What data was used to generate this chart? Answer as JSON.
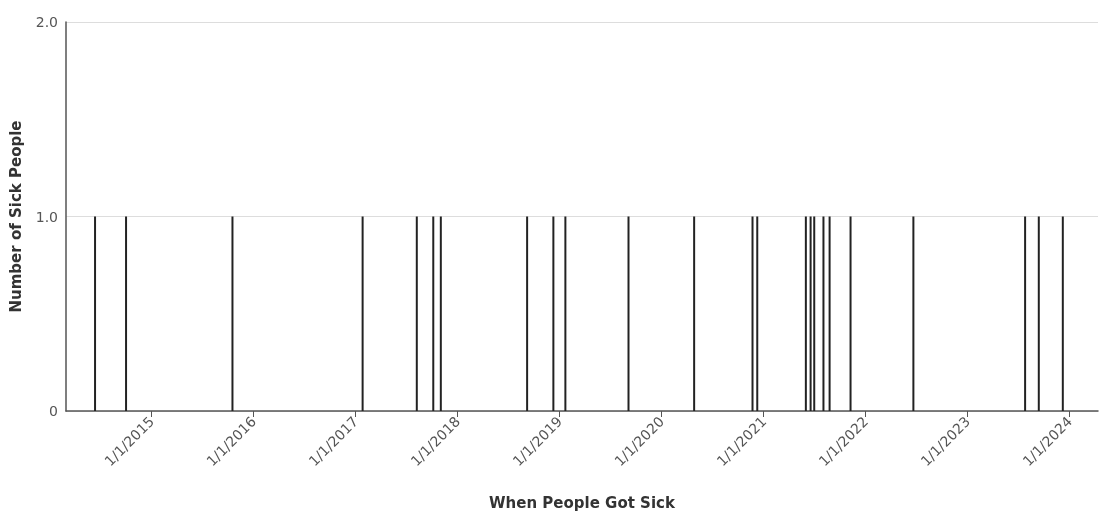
{
  "chart_data": {
    "type": "bar",
    "xlabel": "When People Got Sick",
    "ylabel": "Number of Sick People",
    "x": [
      "2014-06-13",
      "2014-10-02",
      "2015-10-18",
      "2017-01-26",
      "2017-08-08",
      "2017-10-06",
      "2017-11-02",
      "2018-09-07",
      "2018-12-10",
      "2019-01-22",
      "2019-09-05",
      "2020-04-27",
      "2020-11-22",
      "2020-12-09",
      "2021-06-01",
      "2021-06-18",
      "2021-07-01",
      "2021-08-03",
      "2021-08-25",
      "2021-11-08",
      "2022-06-21",
      "2023-07-26",
      "2023-09-13",
      "2023-12-08"
    ],
    "values": [
      1,
      1,
      1,
      1,
      1,
      1,
      1,
      1,
      1,
      1,
      1,
      1,
      1,
      1,
      1,
      1,
      1,
      1,
      1,
      1,
      1,
      1,
      1,
      1
    ],
    "color": "#222222",
    "xlim": [
      "2014-03-01",
      "2024-04-12"
    ],
    "xticks": [
      {
        "value": "2015-01-01",
        "label": "1/1/2015"
      },
      {
        "value": "2016-01-01",
        "label": "1/1/2016"
      },
      {
        "value": "2017-01-01",
        "label": "1/1/2017"
      },
      {
        "value": "2018-01-01",
        "label": "1/1/2018"
      },
      {
        "value": "2019-01-01",
        "label": "1/1/2019"
      },
      {
        "value": "2020-01-01",
        "label": "1/1/2020"
      },
      {
        "value": "2021-01-01",
        "label": "1/1/2021"
      },
      {
        "value": "2022-01-01",
        "label": "1/1/2022"
      },
      {
        "value": "2023-01-01",
        "label": "1/1/2023"
      },
      {
        "value": "2024-01-01",
        "label": "1/1/2024"
      }
    ],
    "ylim": [
      0,
      2
    ],
    "yticks": [
      0,
      {
        "value": 1,
        "label": "1.0"
      },
      {
        "value": 2,
        "label": "2.0"
      }
    ],
    "grid": "y"
  }
}
